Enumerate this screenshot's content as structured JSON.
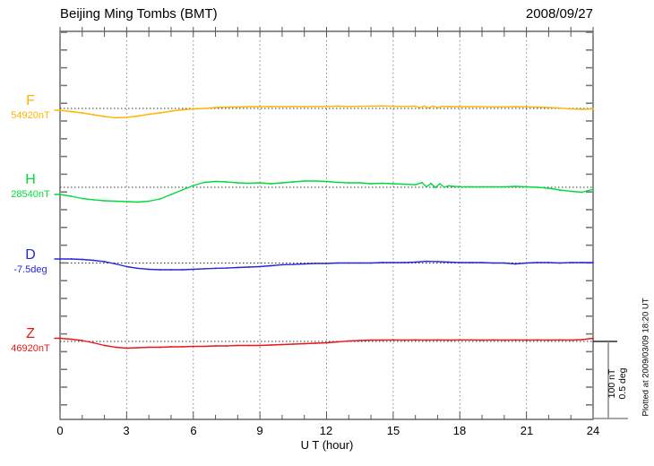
{
  "header": {
    "title": "Beijing Ming Tombs (BMT)",
    "date": "2008/09/27"
  },
  "components": [
    {
      "label": "F",
      "value": "54920nT",
      "color": "#FFB400"
    },
    {
      "label": "H",
      "value": "28540nT",
      "color": "#00DC3C"
    },
    {
      "label": "D",
      "value": "-7.5deg",
      "color": "#2626DD"
    },
    {
      "label": "Z",
      "value": "46920nT",
      "color": "#E81818"
    }
  ],
  "axis": {
    "x_label": "U T (hour)",
    "x_tick_labels": [
      "0",
      "3",
      "6",
      "9",
      "12",
      "15",
      "18",
      "21",
      "24"
    ]
  },
  "scale_bar": {
    "labels": [
      "100 nT",
      "0.5 deg"
    ]
  },
  "footer_note": "Plotted at 2009/03/09 18:20 UT",
  "chart_data": {
    "type": "line",
    "title": "Beijing Ming Tombs (BMT)",
    "date": "2008/09/27",
    "xlabel": "U T (hour)",
    "x_range": [
      0,
      24
    ],
    "x_ticks": [
      0,
      3,
      6,
      9,
      12,
      15,
      18,
      21,
      24
    ],
    "grid_hours": [
      3,
      6,
      9,
      12,
      15,
      18,
      21
    ],
    "grid": "vertical dotted every 3 hours; dotted horizontal reference line per component",
    "scale": {
      "bar_equals_nT": 100,
      "bar_equals_deg": 0.5
    },
    "series": [
      {
        "name": "F",
        "units": "nT",
        "base_label": "54920nT",
        "color": "#FFB400",
        "points": [
          [
            0,
            -2.3
          ],
          [
            0.5,
            -4
          ],
          [
            1,
            -5.7
          ],
          [
            1.5,
            -8
          ],
          [
            2,
            -10.3
          ],
          [
            2.5,
            -12
          ],
          [
            3,
            -11.5
          ],
          [
            3.5,
            -9.8
          ],
          [
            4,
            -7.5
          ],
          [
            4.5,
            -5.7
          ],
          [
            5,
            -3.4
          ],
          [
            5.5,
            -1.7
          ],
          [
            6,
            -0.6
          ],
          [
            6.5,
            0
          ],
          [
            7,
            1.1
          ],
          [
            7.5,
            1.7
          ],
          [
            8,
            1.7
          ],
          [
            8.5,
            2.3
          ],
          [
            9,
            2.3
          ],
          [
            9.5,
            2.5
          ],
          [
            10,
            2.3
          ],
          [
            10.5,
            2.5
          ],
          [
            11,
            2.3
          ],
          [
            11.5,
            2.5
          ],
          [
            12,
            2.5
          ],
          [
            12.5,
            3
          ],
          [
            13,
            2.5
          ],
          [
            13.5,
            2.8
          ],
          [
            14,
            3
          ],
          [
            14.5,
            3.2
          ],
          [
            15,
            2.8
          ],
          [
            15.5,
            2.5
          ],
          [
            16,
            3
          ],
          [
            16.2,
            1
          ],
          [
            16.4,
            3
          ],
          [
            16.6,
            0.8
          ],
          [
            16.8,
            3
          ],
          [
            17,
            0.9
          ],
          [
            17.2,
            2.6
          ],
          [
            17.5,
            2.3
          ],
          [
            18,
            2.3
          ],
          [
            18.5,
            2.3
          ],
          [
            19,
            2.2
          ],
          [
            19.5,
            2
          ],
          [
            20,
            2
          ],
          [
            20.5,
            2.3
          ],
          [
            21,
            2
          ],
          [
            21.5,
            1.7
          ],
          [
            22,
            1.1
          ],
          [
            22.5,
            0.5
          ],
          [
            23,
            -0.7
          ],
          [
            23.5,
            -1.2
          ],
          [
            24,
            -0.6
          ]
        ]
      },
      {
        "name": "H",
        "units": "nT",
        "base_label": "28540nT",
        "color": "#00DC3C",
        "points": [
          [
            0,
            -9.2
          ],
          [
            0.5,
            -11.5
          ],
          [
            1,
            -14.4
          ],
          [
            1.5,
            -16
          ],
          [
            2,
            -17.2
          ],
          [
            2.5,
            -17.8
          ],
          [
            3,
            -18.4
          ],
          [
            3.5,
            -19
          ],
          [
            4,
            -17.8
          ],
          [
            4.5,
            -14.9
          ],
          [
            5,
            -9.2
          ],
          [
            5.5,
            -3.4
          ],
          [
            6,
            2.3
          ],
          [
            6.5,
            6.3
          ],
          [
            7,
            7.5
          ],
          [
            7.5,
            6.9
          ],
          [
            8,
            5.7
          ],
          [
            8.5,
            5.2
          ],
          [
            9,
            5.7
          ],
          [
            9.5,
            4.6
          ],
          [
            10,
            5.7
          ],
          [
            10.5,
            6.9
          ],
          [
            11,
            8
          ],
          [
            11.5,
            8
          ],
          [
            12,
            7.5
          ],
          [
            12.5,
            6.3
          ],
          [
            13,
            5.7
          ],
          [
            13.5,
            5.7
          ],
          [
            14,
            4.6
          ],
          [
            14.5,
            5.2
          ],
          [
            15,
            4.6
          ],
          [
            15.5,
            4
          ],
          [
            16,
            3.2
          ],
          [
            16.3,
            6
          ],
          [
            16.5,
            0.5
          ],
          [
            16.7,
            5
          ],
          [
            16.9,
            -0.3
          ],
          [
            17.1,
            4.5
          ],
          [
            17.3,
            0
          ],
          [
            17.5,
            2
          ],
          [
            17.7,
            1.2
          ],
          [
            18,
            0.8
          ],
          [
            18.5,
            0.6
          ],
          [
            19,
            0.6
          ],
          [
            19.5,
            0.6
          ],
          [
            20,
            0.6
          ],
          [
            20.5,
            1.1
          ],
          [
            21,
            0.6
          ],
          [
            21.5,
            0
          ],
          [
            22,
            -1.1
          ],
          [
            22.5,
            -3.4
          ],
          [
            23,
            -5.2
          ],
          [
            23.5,
            -6.3
          ],
          [
            24,
            -2.5
          ]
        ]
      },
      {
        "name": "D",
        "units": "deg",
        "base_label": "-7.5deg",
        "color": "#2626DD",
        "points": [
          [
            0,
            0.026
          ],
          [
            0.5,
            0.026
          ],
          [
            1,
            0.023
          ],
          [
            1.5,
            0.017
          ],
          [
            2,
            0.009
          ],
          [
            2.5,
            -0.006
          ],
          [
            3,
            -0.023
          ],
          [
            3.5,
            -0.034
          ],
          [
            4,
            -0.04
          ],
          [
            4.5,
            -0.043
          ],
          [
            5,
            -0.043
          ],
          [
            5.5,
            -0.043
          ],
          [
            6,
            -0.04
          ],
          [
            6.5,
            -0.037
          ],
          [
            7,
            -0.034
          ],
          [
            7.5,
            -0.032
          ],
          [
            8,
            -0.029
          ],
          [
            8.5,
            -0.026
          ],
          [
            9,
            -0.023
          ],
          [
            9.5,
            -0.017
          ],
          [
            10,
            -0.011
          ],
          [
            10.5,
            -0.009
          ],
          [
            11,
            -0.006
          ],
          [
            11.5,
            -0.003
          ],
          [
            12,
            -0.003
          ],
          [
            12.5,
            0
          ],
          [
            13,
            0
          ],
          [
            13.5,
            0
          ],
          [
            14,
            0
          ],
          [
            14.5,
            0.003
          ],
          [
            15,
            0.003
          ],
          [
            15.5,
            0.003
          ],
          [
            16,
            0.006
          ],
          [
            16.5,
            0.011
          ],
          [
            17,
            0.009
          ],
          [
            17.5,
            0.006
          ],
          [
            18,
            0.003
          ],
          [
            18.5,
            0.003
          ],
          [
            19,
            0.003
          ],
          [
            19.5,
            0
          ],
          [
            20,
            0
          ],
          [
            20.5,
            -0.006
          ],
          [
            21,
            0
          ],
          [
            21.5,
            0.003
          ],
          [
            22,
            0.003
          ],
          [
            22.5,
            0
          ],
          [
            23,
            0.003
          ],
          [
            23.5,
            0.003
          ],
          [
            24,
            0.003
          ]
        ]
      },
      {
        "name": "Z",
        "units": "nT",
        "base_label": "46920nT",
        "color": "#E81818",
        "points": [
          [
            0,
            4
          ],
          [
            0.5,
            2.9
          ],
          [
            1,
            1.1
          ],
          [
            1.5,
            -1.7
          ],
          [
            2,
            -5.2
          ],
          [
            2.5,
            -7.5
          ],
          [
            3,
            -8.6
          ],
          [
            3.5,
            -8
          ],
          [
            4,
            -7.5
          ],
          [
            4.5,
            -7.5
          ],
          [
            5,
            -6.9
          ],
          [
            5.5,
            -6.9
          ],
          [
            6,
            -6.3
          ],
          [
            6.5,
            -6.3
          ],
          [
            7,
            -5.7
          ],
          [
            7.5,
            -5.7
          ],
          [
            8,
            -5.2
          ],
          [
            8.5,
            -5.2
          ],
          [
            9,
            -5.2
          ],
          [
            9.5,
            -4.6
          ],
          [
            10,
            -4
          ],
          [
            10.5,
            -3.4
          ],
          [
            11,
            -2.9
          ],
          [
            11.5,
            -2.3
          ],
          [
            12,
            -1.7
          ],
          [
            12.5,
            -0.6
          ],
          [
            13,
            0.6
          ],
          [
            13.5,
            1.1
          ],
          [
            14,
            1.7
          ],
          [
            14.5,
            1.7
          ],
          [
            15,
            1.9
          ],
          [
            15.5,
            1.7
          ],
          [
            16,
            1.9
          ],
          [
            16.5,
            1.7
          ],
          [
            17,
            1.9
          ],
          [
            17.5,
            1.7
          ],
          [
            18,
            1.9
          ],
          [
            18.5,
            2
          ],
          [
            19,
            1.7
          ],
          [
            19.5,
            1.9
          ],
          [
            20,
            1.7
          ],
          [
            20.5,
            1.9
          ],
          [
            21,
            1.7
          ],
          [
            21.5,
            1.9
          ],
          [
            22,
            1.7
          ],
          [
            22.5,
            1.9
          ],
          [
            23,
            1.7
          ],
          [
            23.5,
            2.3
          ],
          [
            24,
            4
          ]
        ]
      }
    ]
  }
}
